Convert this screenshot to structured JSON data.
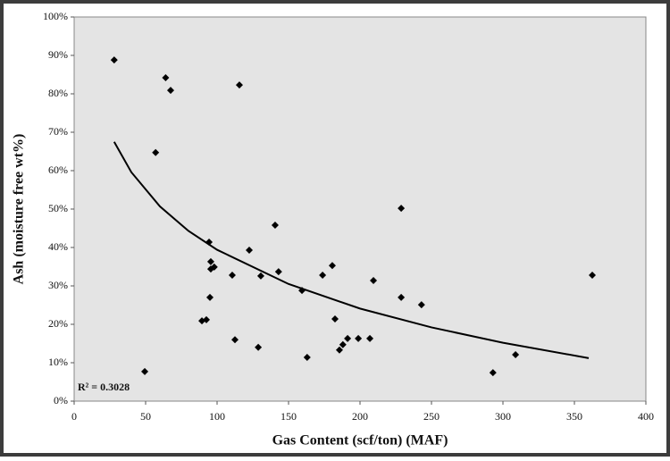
{
  "chart_data": {
    "type": "scatter",
    "x_label": "Gas Content (scf/ton) (MAF)",
    "y_label": "Ash (moisture free wt%)",
    "annotation": "R² = 0.3028",
    "color": "#000000",
    "x": [
      28,
      64,
      67.5,
      115.6,
      57,
      228.8,
      94.4,
      140.6,
      122.5,
      95.6,
      95.6,
      98,
      143,
      110.6,
      130.6,
      173.8,
      180.6,
      209.4,
      159.4,
      95,
      228.8,
      243,
      89.4,
      92.5,
      182.5,
      191.3,
      198.8,
      206.9,
      112.5,
      128.8,
      188,
      185.6,
      163,
      49.4,
      293,
      308.8,
      362.5
    ],
    "values": [
      88.8,
      84.2,
      80.9,
      82.3,
      64.7,
      50.2,
      41.4,
      45.8,
      39.3,
      36.3,
      34.4,
      34.9,
      33.7,
      32.8,
      32.6,
      32.8,
      35.3,
      31.4,
      28.8,
      27.0,
      27.0,
      25.1,
      20.9,
      21.2,
      21.4,
      16.3,
      16.3,
      16.3,
      16.0,
      14.0,
      14.7,
      13.3,
      11.4,
      7.7,
      7.4,
      12.1,
      32.8
    ],
    "trendline": {
      "x": [
        28,
        40,
        60,
        80,
        100,
        150,
        200,
        250,
        300,
        360
      ],
      "values": [
        67.5,
        59.6,
        50.7,
        44.3,
        39.4,
        30.5,
        24.1,
        19.2,
        15.2,
        11.2
      ]
    },
    "xlim": [
      0,
      400
    ],
    "xticks": [
      0,
      50,
      100,
      150,
      200,
      250,
      300,
      350,
      400
    ],
    "ylim": [
      0,
      100
    ],
    "yticks": [
      {
        "value": 0,
        "label": "0%"
      },
      {
        "value": 10,
        "label": "10%"
      },
      {
        "value": 20,
        "label": "20%"
      },
      {
        "value": 30,
        "label": "30%"
      },
      {
        "value": 40,
        "label": "40%"
      },
      {
        "value": 50,
        "label": "50%"
      },
      {
        "value": 60,
        "label": "60%"
      },
      {
        "value": 70,
        "label": "70%"
      },
      {
        "value": 80,
        "label": "80%"
      },
      {
        "value": 90,
        "label": "90%"
      },
      {
        "value": 100,
        "label": "100%"
      }
    ],
    "grid": false
  }
}
